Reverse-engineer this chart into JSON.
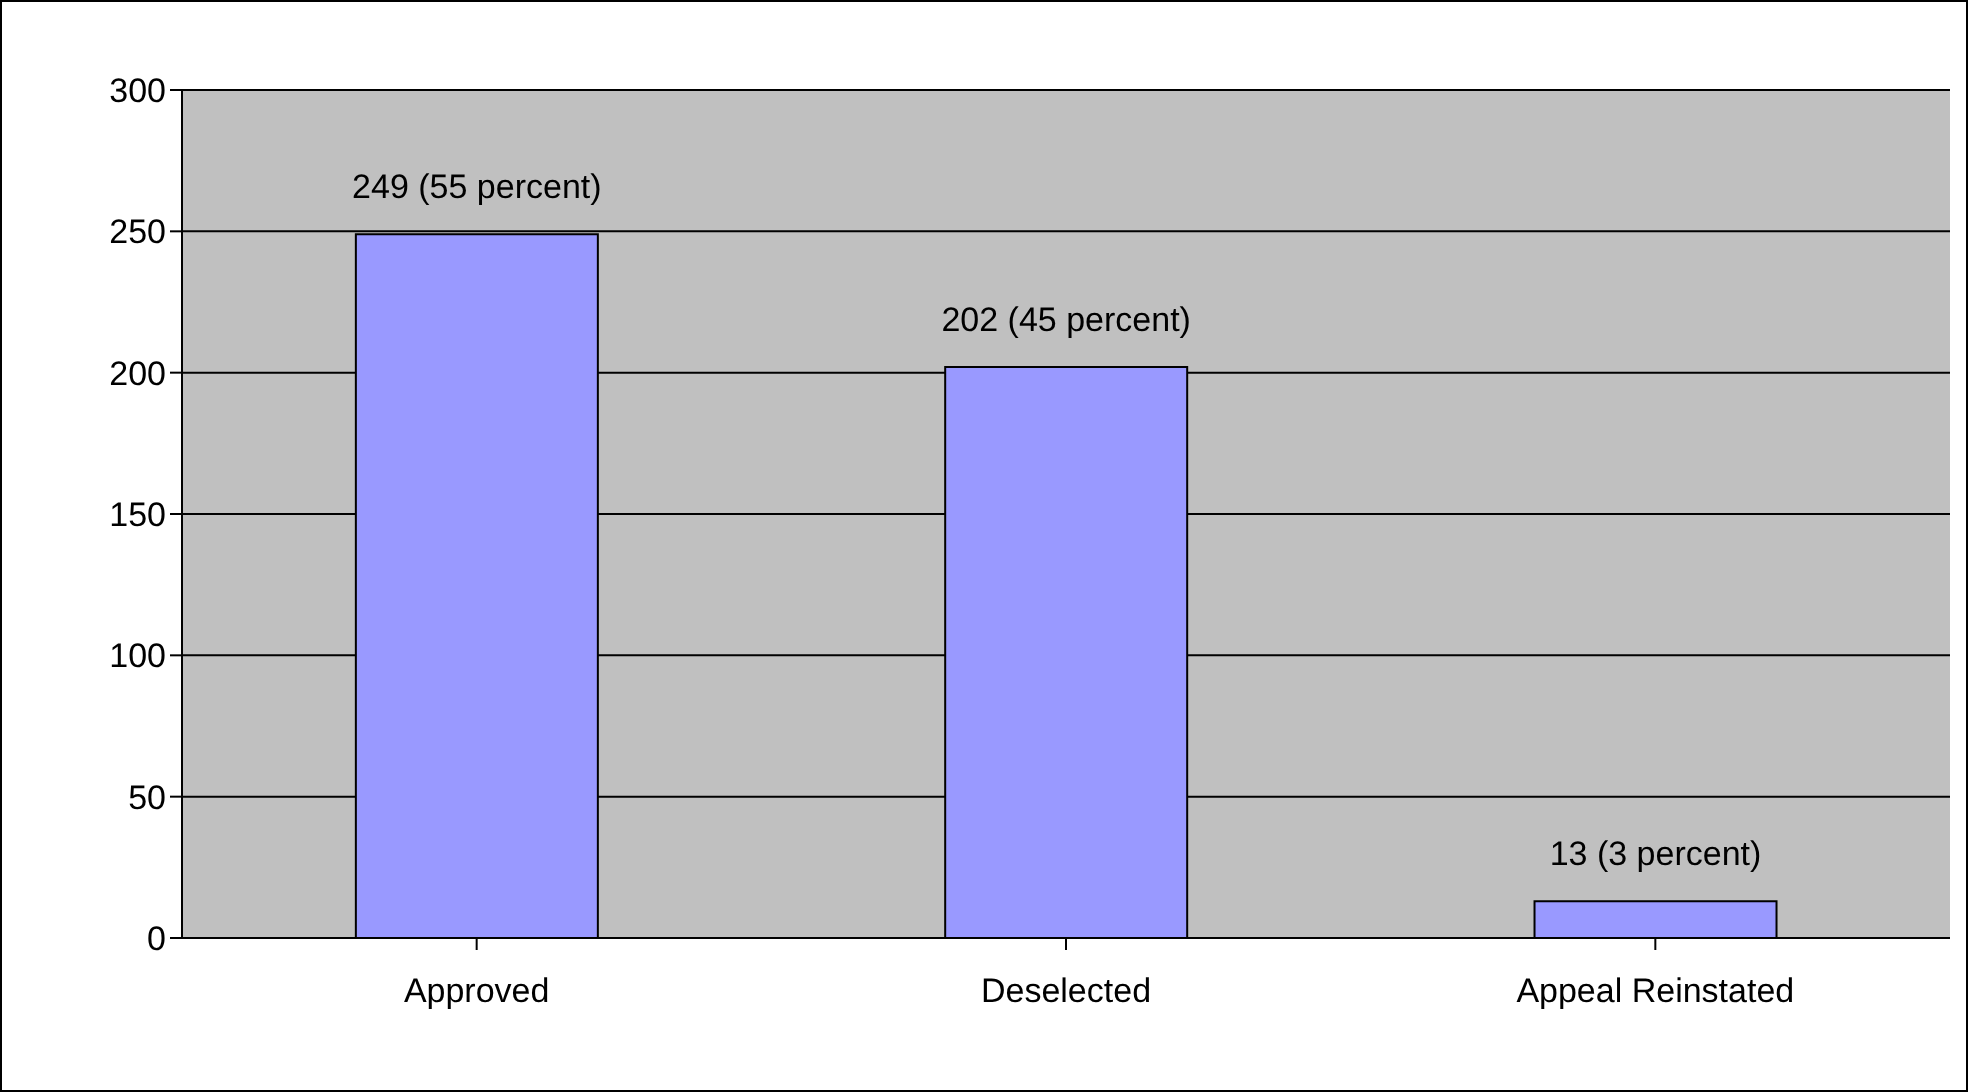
{
  "chart_data": {
    "type": "bar",
    "categories": [
      "Approved",
      "Deselected",
      "Appeal Reinstated"
    ],
    "values": [
      249,
      202,
      13
    ],
    "value_labels": [
      "249 (55 percent)",
      "202 (45 percent)",
      "13 (3 percent)"
    ],
    "color": "#9999ff",
    "ylim": [
      0,
      300
    ],
    "yticks": [
      0,
      50,
      100,
      150,
      200,
      250,
      300
    ],
    "grid": "y"
  }
}
